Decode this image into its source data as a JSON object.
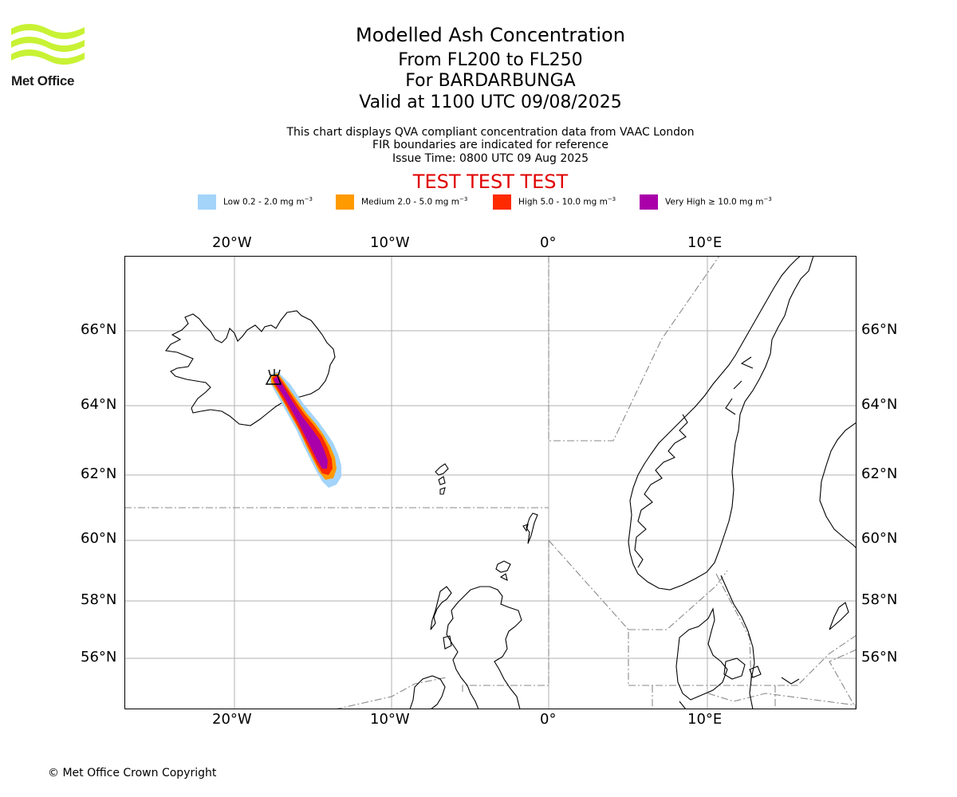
{
  "logo": {
    "text": "Met Office"
  },
  "header": {
    "title": "Modelled Ash Concentration",
    "flight_levels": "From FL200 to FL250",
    "volcano": "For BARDARBUNGA",
    "valid_time": "Valid at 1100 UTC 09/08/2025"
  },
  "info": {
    "line1": "This chart displays QVA compliant concentration data from VAAC London",
    "line2": "FIR boundaries are indicated for reference",
    "line3": "Issue Time: 0800 UTC 09 Aug 2025"
  },
  "test_banner": "TEST TEST TEST",
  "legend": [
    {
      "label": "Low 0.2 - 2.0 mg m",
      "sup": "−3",
      "color": "#a4d4fa"
    },
    {
      "label": "Medium 2.0 - 5.0 mg m",
      "sup": "−3",
      "color": "#ff9a00"
    },
    {
      "label": "High 5.0 - 10.0 mg m",
      "sup": "−3",
      "color": "#ff2a00"
    },
    {
      "label": "Very High ≥ 10.0 mg m",
      "sup": "−3",
      "color": "#aa00aa"
    }
  ],
  "axes": {
    "lon_ticks": [
      "20°W",
      "10°W",
      "0°",
      "10°E"
    ],
    "lat_ticks": [
      "66°N",
      "64°N",
      "62°N",
      "60°N",
      "58°N",
      "56°N"
    ]
  },
  "footer": {
    "copyright": "© Met Office Crown Copyright"
  }
}
